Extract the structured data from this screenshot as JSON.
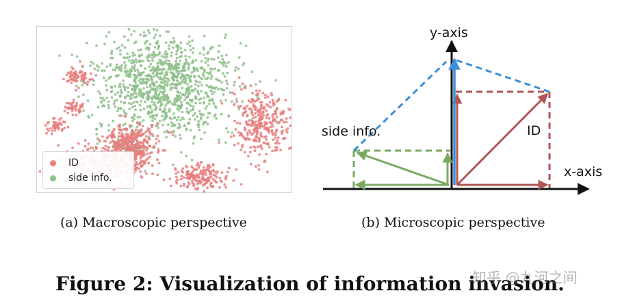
{
  "panel_a": {
    "legend": [
      {
        "label": "ID",
        "color": "#e87e7e"
      },
      {
        "label": "side info.",
        "color": "#8fbf8b"
      }
    ]
  },
  "panel_b": {
    "y_axis_label": "y-axis",
    "x_axis_label": "x-axis",
    "side_info_label": "side info.",
    "id_label": "ID",
    "colors": {
      "id": "#b05454",
      "side_info": "#7aaa62",
      "sum": "#3a8fd8",
      "axis": "#111111"
    }
  },
  "captions": {
    "a": "(a)  Macroscopic perspective",
    "b": "(b)  Microscopic perspective"
  },
  "figure_title": "Figure 2: Visualization of information invasion.",
  "watermark": "知乎 @九河之间"
}
